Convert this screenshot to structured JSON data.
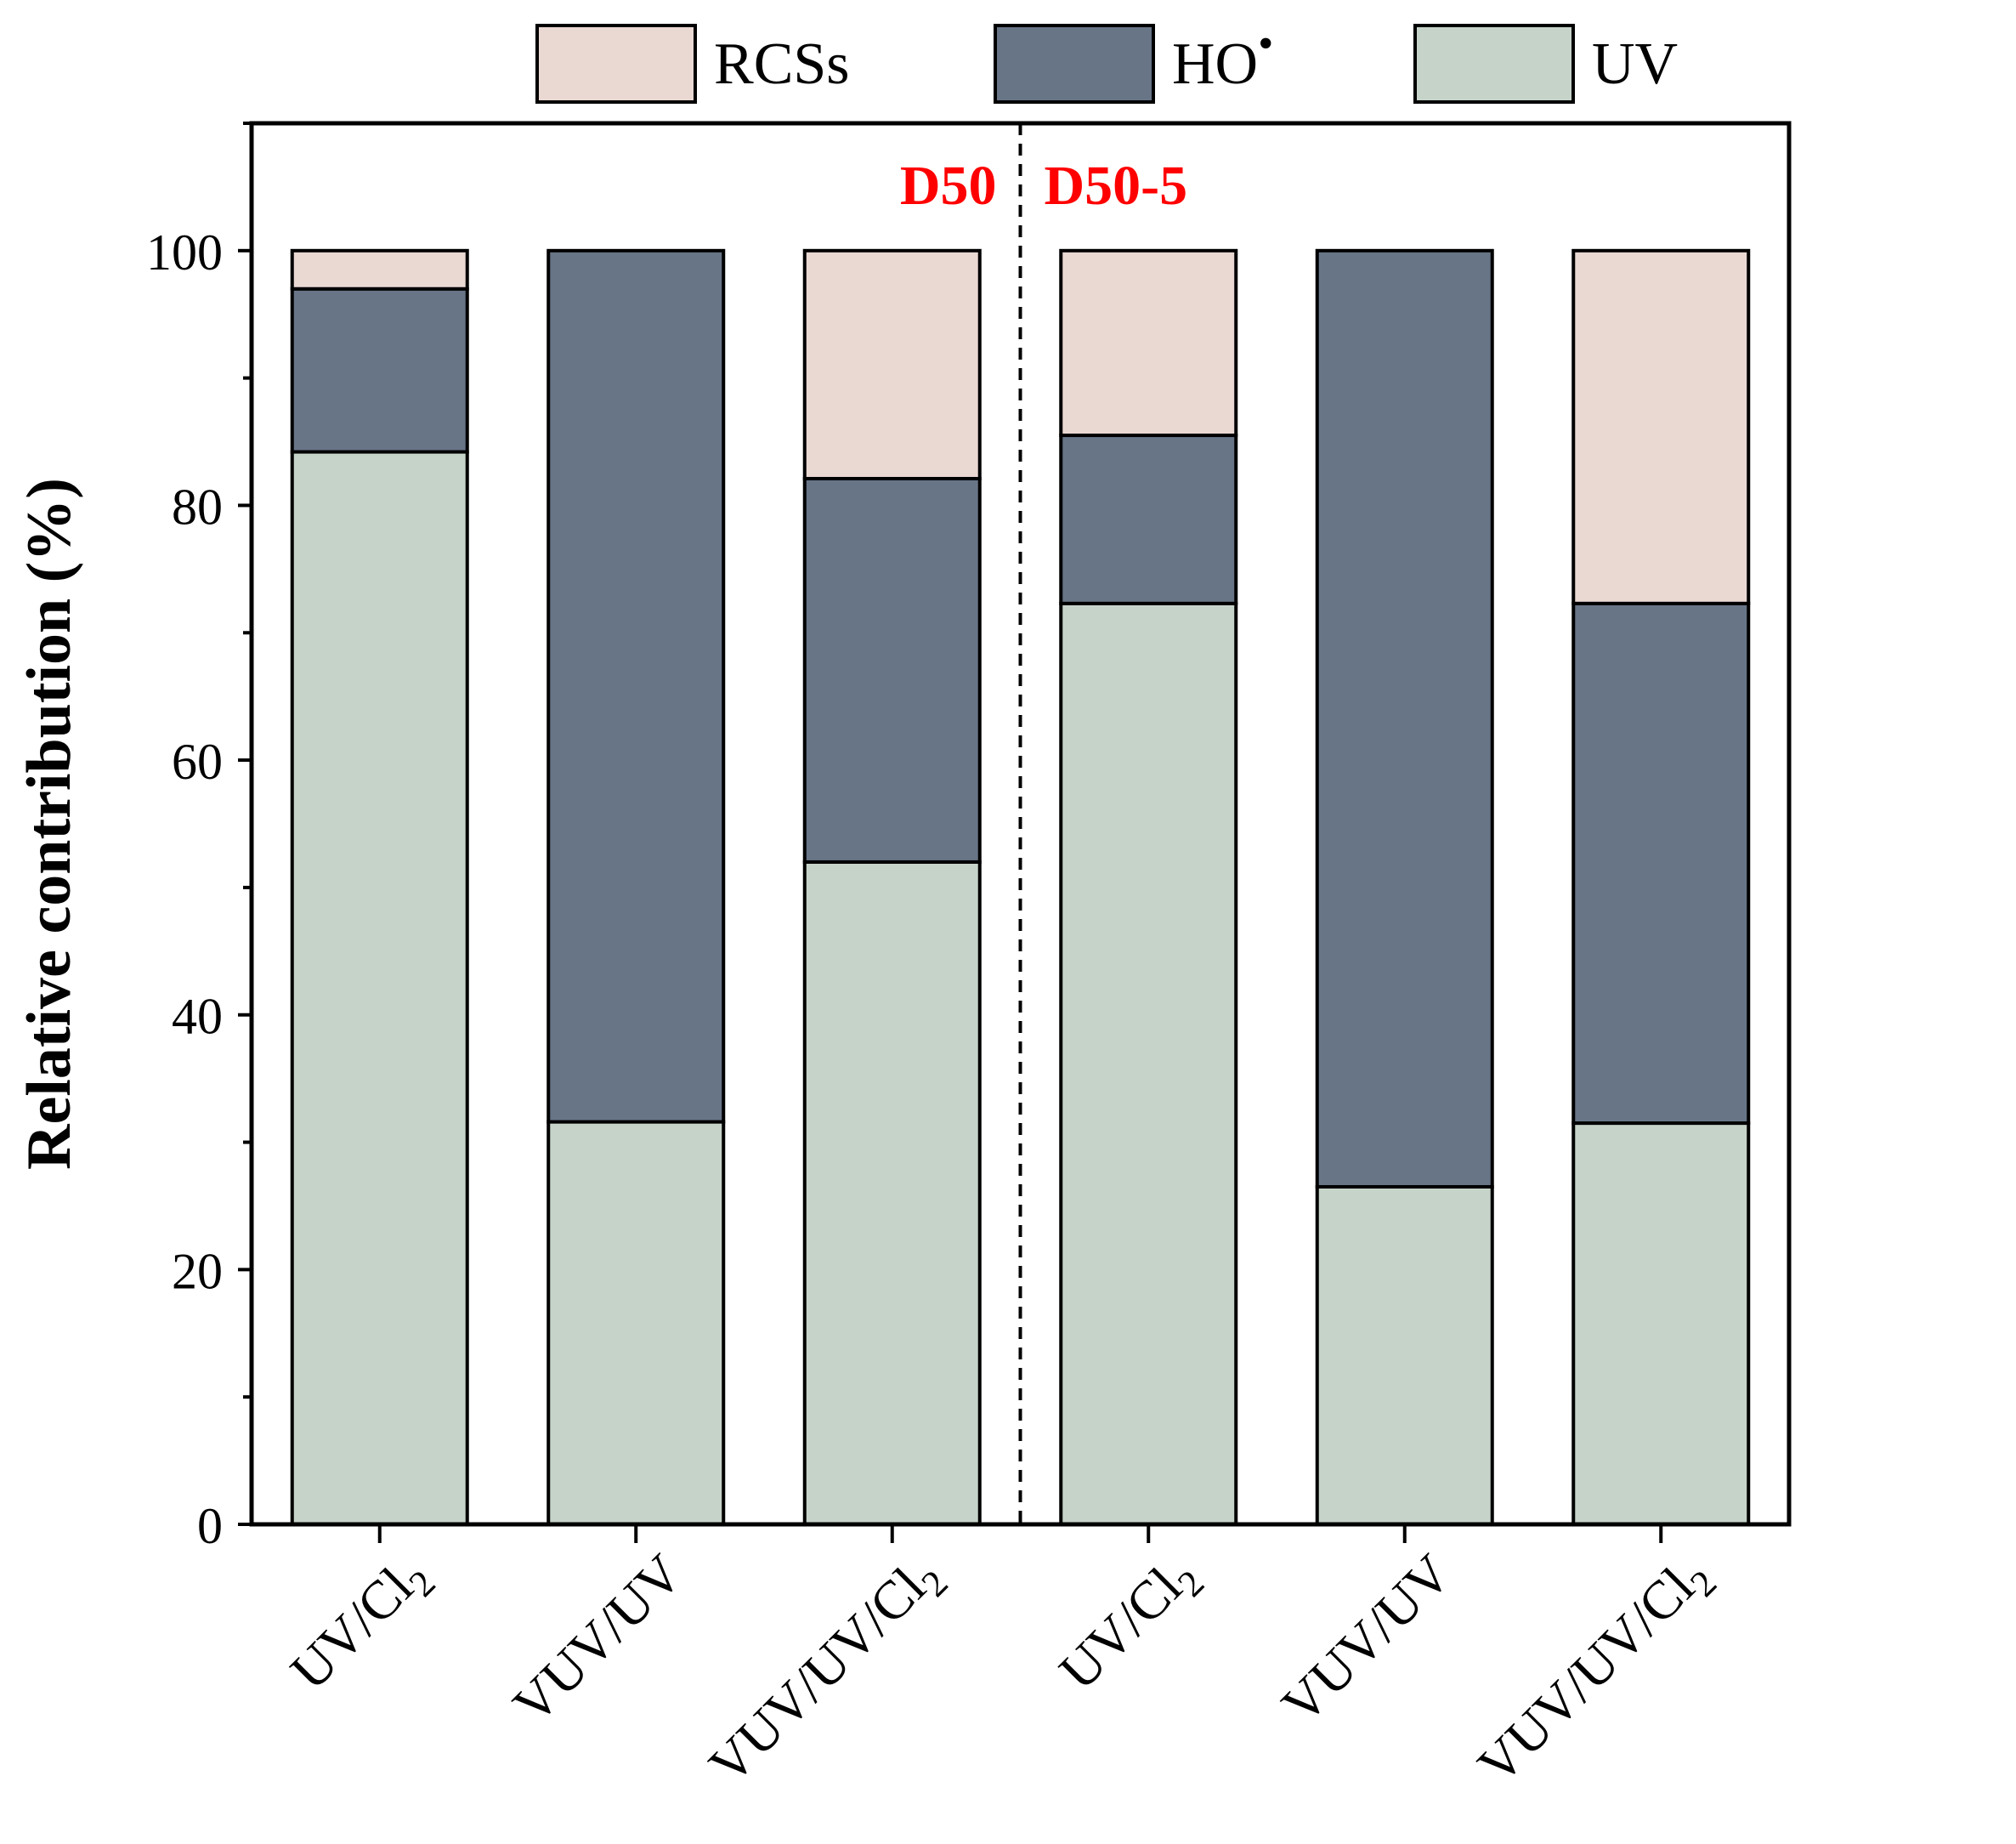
{
  "chart_data": {
    "type": "bar",
    "stacked": true,
    "ylabel": "Relative contribution (%)",
    "xlabel": "",
    "ylim": [
      0,
      110
    ],
    "yticks": [
      0,
      20,
      40,
      60,
      80,
      100
    ],
    "yminor_step": 10,
    "grid": false,
    "legend_position": "top",
    "categories": [
      {
        "label": "UV/Cl",
        "sub": "2"
      },
      {
        "label": "VUV/UV",
        "sub": ""
      },
      {
        "label": "VUV/UV/Cl",
        "sub": "2"
      },
      {
        "label": "UV/Cl",
        "sub": "2"
      },
      {
        "label": "VUV/UV",
        "sub": ""
      },
      {
        "label": "VUV/UV/Cl",
        "sub": "2"
      }
    ],
    "series": [
      {
        "name": "UV",
        "color": "#c6d3c9",
        "values": [
          84.2,
          31.6,
          52.0,
          72.3,
          26.5,
          31.5
        ]
      },
      {
        "name": "HO",
        "sup": "•",
        "color": "#687587",
        "values": [
          12.8,
          68.4,
          30.1,
          13.2,
          73.5,
          40.8
        ]
      },
      {
        "name": "RCSs",
        "color": "#ead8d3",
        "values": [
          3.0,
          0.0,
          17.9,
          14.5,
          0.0,
          27.7
        ]
      }
    ],
    "legend_order": [
      "RCSs",
      "HO",
      "UV"
    ],
    "groups": [
      {
        "label": "D50",
        "color": "#ff0000"
      },
      {
        "label": "D50-5",
        "color": "#ff0000"
      }
    ]
  }
}
